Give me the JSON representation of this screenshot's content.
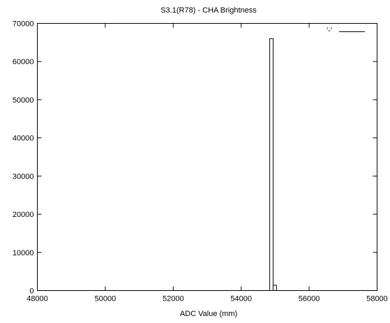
{
  "chart_data": {
    "type": "bar",
    "title": "S3.1(R78) - CHA Brightness",
    "xlabel": "ADC Value (mm)",
    "ylabel": "",
    "xlim": [
      48000,
      58000
    ],
    "ylim": [
      0,
      70000
    ],
    "x_ticks": [
      48000,
      50000,
      52000,
      54000,
      56000,
      58000
    ],
    "y_ticks": [
      0,
      10000,
      20000,
      30000,
      40000,
      50000,
      60000,
      70000
    ],
    "grid": false,
    "legend_position": "top-right",
    "series": [
      {
        "name": "'-'",
        "bins": [
          {
            "x0": 54840,
            "x1": 54940,
            "count": 66000
          },
          {
            "x0": 54940,
            "x1": 55040,
            "count": 1400
          }
        ]
      }
    ],
    "colors": {
      "axis": "#000000",
      "series": "#000000"
    }
  }
}
